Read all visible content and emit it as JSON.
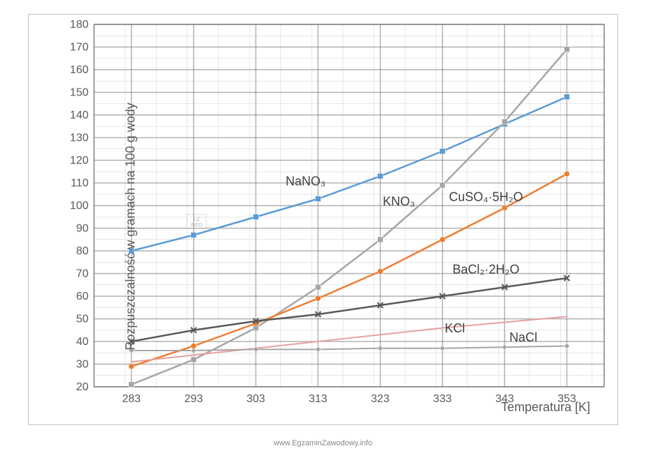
{
  "chart": {
    "type": "line",
    "x_categories": [
      283,
      293,
      303,
      313,
      323,
      333,
      343,
      353
    ],
    "ylim": [
      20,
      180
    ],
    "ytick_step": 10,
    "xlabel": "Temperatura [K]",
    "ylabel": "Rozpuszczalność w gramach na 100 g wody",
    "label_fontsize": 18,
    "tick_fontsize": 16,
    "tick_color": "#595959",
    "background_color": "#ffffff",
    "grid_major_color": "#808080",
    "grid_minor_color": "#d0d0d0",
    "grid_major_width": 1.5,
    "grid_minor_width": 0.5,
    "border_color": "#c0c0c0",
    "plot_box_border_color": "#808080",
    "series": [
      {
        "name": "NaNO3",
        "label": "NaNO₃",
        "color": "#5b9bd5",
        "marker": "square",
        "marker_size": 8,
        "line_width": 2.5,
        "values": [
          80,
          87,
          95,
          103,
          113,
          124,
          136,
          148
        ],
        "label_x": 311,
        "label_y": 109
      },
      {
        "name": "KNO3",
        "label": "KNO₃",
        "color": "#a6a6a6",
        "marker": "square",
        "marker_size": 8,
        "line_width": 2.5,
        "values": [
          21,
          32,
          46,
          64,
          85,
          109,
          137,
          169
        ],
        "label_x": 326,
        "label_y": 100
      },
      {
        "name": "CuSO4_5H2O",
        "label": "CuSO₄·5H₂O",
        "color": "#ed7d31",
        "marker": "circle",
        "marker_size": 8,
        "line_width": 2.5,
        "values": [
          29,
          38,
          48,
          59,
          71,
          85,
          99,
          114
        ],
        "label_x": 340,
        "label_y": 102
      },
      {
        "name": "BaCl2_2H2O",
        "label": "BaCl₂·2H₂O",
        "color": "#595959",
        "marker": "x",
        "marker_size": 8,
        "line_width": 2.5,
        "values": [
          40,
          45,
          49,
          52,
          56,
          60,
          64,
          68
        ],
        "label_x": 340,
        "label_y": 70
      },
      {
        "name": "KCl",
        "label": "KCl",
        "color": "#e8a0a0",
        "marker": "none",
        "marker_size": 0,
        "line_width": 2,
        "values": [
          31,
          34,
          37,
          40,
          43,
          46,
          48.5,
          51
        ],
        "label_x": 335,
        "label_y": 44
      },
      {
        "name": "NaCl",
        "label": "NaCl",
        "color": "#a6a6a6",
        "marker": "diamond",
        "marker_size": 8,
        "line_width": 2,
        "values": [
          36,
          36,
          36.5,
          36.5,
          37,
          37,
          37.5,
          38
        ],
        "label_x": 346,
        "label_y": 40
      }
    ],
    "watermark": "www.EgzaminZawodowy.info",
    "ez_box_label": "EZ",
    "ez_box_sublabel": "INFO"
  }
}
